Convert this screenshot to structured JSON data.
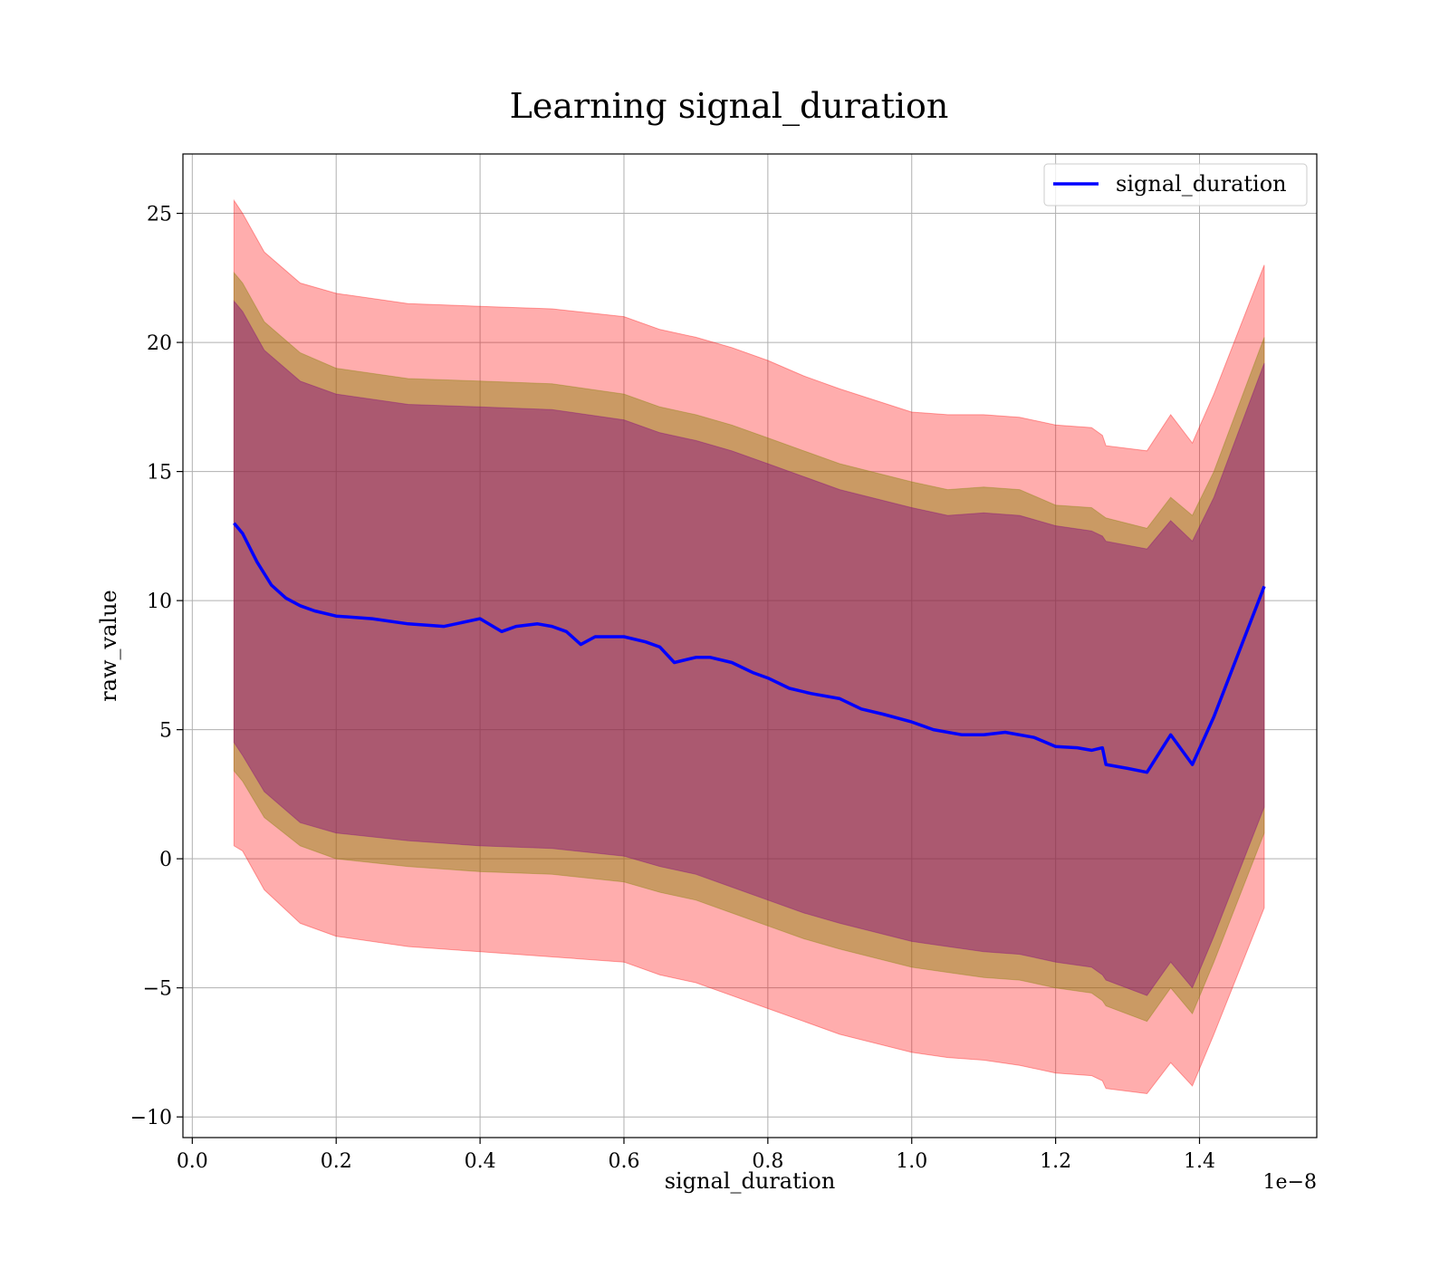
{
  "chart_data": {
    "type": "line",
    "title": "Learning signal_duration",
    "xlabel": "signal_duration",
    "ylabel": "raw_value",
    "x_offset_text": "1e−8",
    "xlim": [
      -0.013,
      1.563
    ],
    "ylim": [
      -10.8,
      27.3
    ],
    "x_ticks": [
      0.0,
      0.2,
      0.4,
      0.6,
      0.8,
      1.0,
      1.2,
      1.4
    ],
    "x_tick_labels": [
      "0.0",
      "0.2",
      "0.4",
      "0.6",
      "0.8",
      "1.0",
      "1.2",
      "1.4"
    ],
    "y_ticks": [
      -10,
      -5,
      0,
      5,
      10,
      15,
      20,
      25
    ],
    "y_tick_labels": [
      "−10",
      "−5",
      "0",
      "5",
      "10",
      "15",
      "20",
      "25"
    ],
    "grid": true,
    "legend_position": "top-right",
    "colors": {
      "line": "#0000ff",
      "outer_band": "#ff0000",
      "middle_band": "#808000",
      "inner_band": "#800080"
    },
    "series": [
      {
        "name": "signal_duration",
        "x": [
          0.058,
          0.07,
          0.09,
          0.11,
          0.13,
          0.15,
          0.17,
          0.2,
          0.25,
          0.3,
          0.35,
          0.4,
          0.43,
          0.45,
          0.48,
          0.5,
          0.52,
          0.54,
          0.56,
          0.6,
          0.63,
          0.65,
          0.67,
          0.7,
          0.72,
          0.75,
          0.78,
          0.8,
          0.83,
          0.86,
          0.9,
          0.93,
          0.96,
          1.0,
          1.03,
          1.07,
          1.1,
          1.13,
          1.17,
          1.2,
          1.23,
          1.25,
          1.265,
          1.27,
          1.3,
          1.327,
          1.36,
          1.39,
          1.42,
          1.49
        ],
        "y": [
          13.0,
          12.6,
          11.5,
          10.6,
          10.1,
          9.8,
          9.6,
          9.4,
          9.3,
          9.1,
          9.0,
          9.3,
          8.8,
          9.0,
          9.1,
          9.0,
          8.8,
          8.3,
          8.6,
          8.6,
          8.4,
          8.2,
          7.6,
          7.8,
          7.8,
          7.6,
          7.2,
          7.0,
          6.6,
          6.4,
          6.2,
          5.8,
          5.6,
          5.3,
          5.0,
          4.8,
          4.8,
          4.9,
          4.7,
          4.35,
          4.3,
          4.2,
          4.3,
          3.65,
          3.5,
          3.35,
          4.8,
          3.65,
          5.5,
          10.55
        ]
      }
    ],
    "bands": [
      {
        "x": [
          0.058,
          0.07,
          0.1,
          0.15,
          0.2,
          0.3,
          0.4,
          0.5,
          0.6,
          0.65,
          0.7,
          0.75,
          0.8,
          0.85,
          0.9,
          1.0,
          1.05,
          1.1,
          1.15,
          1.2,
          1.25,
          1.265,
          1.27,
          1.327,
          1.36,
          1.39,
          1.42,
          1.49
        ],
        "upper": [
          25.5,
          25.0,
          23.5,
          22.3,
          21.9,
          21.5,
          21.4,
          21.3,
          21.0,
          20.5,
          20.2,
          19.8,
          19.3,
          18.7,
          18.2,
          17.3,
          17.2,
          17.2,
          17.1,
          16.8,
          16.7,
          16.4,
          16.0,
          15.8,
          17.2,
          16.1,
          18.0,
          23.0
        ],
        "lower": [
          0.5,
          0.3,
          -1.2,
          -2.5,
          -3.0,
          -3.4,
          -3.6,
          -3.8,
          -4.0,
          -4.5,
          -4.8,
          -5.3,
          -5.8,
          -6.3,
          -6.8,
          -7.5,
          -7.7,
          -7.8,
          -8.0,
          -8.3,
          -8.4,
          -8.6,
          -8.9,
          -9.1,
          -7.9,
          -8.8,
          -6.8,
          -1.9
        ]
      },
      {
        "x": [
          0.058,
          0.07,
          0.1,
          0.15,
          0.2,
          0.3,
          0.4,
          0.5,
          0.6,
          0.65,
          0.7,
          0.75,
          0.8,
          0.85,
          0.9,
          1.0,
          1.05,
          1.1,
          1.15,
          1.2,
          1.25,
          1.265,
          1.27,
          1.327,
          1.36,
          1.39,
          1.42,
          1.49
        ],
        "upper": [
          22.7,
          22.3,
          20.8,
          19.6,
          19.0,
          18.6,
          18.5,
          18.4,
          18.0,
          17.5,
          17.2,
          16.8,
          16.3,
          15.8,
          15.3,
          14.6,
          14.3,
          14.4,
          14.3,
          13.7,
          13.6,
          13.3,
          13.2,
          12.8,
          14.0,
          13.3,
          15.0,
          20.2
        ],
        "lower": [
          3.4,
          3.0,
          1.6,
          0.5,
          0.0,
          -0.3,
          -0.5,
          -0.6,
          -0.9,
          -1.3,
          -1.6,
          -2.1,
          -2.6,
          -3.1,
          -3.5,
          -4.2,
          -4.4,
          -4.6,
          -4.7,
          -5.0,
          -5.2,
          -5.5,
          -5.7,
          -6.3,
          -5.0,
          -6.0,
          -4.0,
          1.0
        ]
      },
      {
        "x": [
          0.058,
          0.07,
          0.1,
          0.15,
          0.2,
          0.3,
          0.4,
          0.5,
          0.6,
          0.65,
          0.7,
          0.75,
          0.8,
          0.85,
          0.9,
          1.0,
          1.05,
          1.1,
          1.15,
          1.2,
          1.25,
          1.265,
          1.27,
          1.327,
          1.36,
          1.39,
          1.42,
          1.49
        ],
        "upper": [
          21.6,
          21.2,
          19.7,
          18.5,
          18.0,
          17.6,
          17.5,
          17.4,
          17.0,
          16.5,
          16.2,
          15.8,
          15.3,
          14.8,
          14.3,
          13.6,
          13.3,
          13.4,
          13.3,
          12.9,
          12.7,
          12.5,
          12.3,
          12.0,
          13.1,
          12.3,
          14.0,
          19.2
        ],
        "lower": [
          4.5,
          4.0,
          2.6,
          1.4,
          1.0,
          0.7,
          0.5,
          0.4,
          0.1,
          -0.3,
          -0.6,
          -1.1,
          -1.6,
          -2.1,
          -2.5,
          -3.2,
          -3.4,
          -3.6,
          -3.7,
          -4.0,
          -4.2,
          -4.5,
          -4.7,
          -5.3,
          -4.0,
          -5.0,
          -3.0,
          2.0
        ]
      }
    ]
  }
}
